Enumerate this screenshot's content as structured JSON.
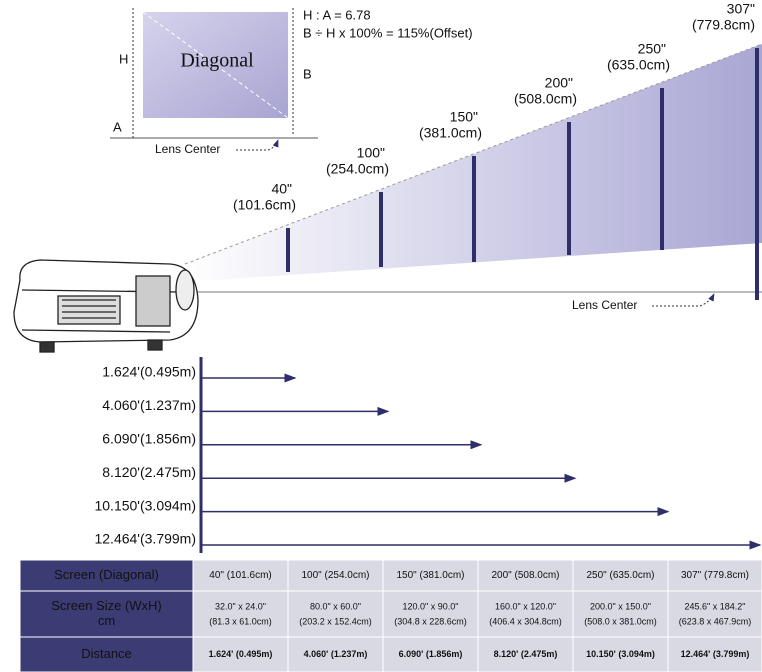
{
  "inset": {
    "formula_ratio": "H : A = 6.78",
    "formula_offset": "B ÷ H x 100% = 115%(Offset)",
    "label_h": "H",
    "label_a": "A",
    "label_b": "B",
    "diagonal": "Diagonal",
    "lens_center": "Lens Center"
  },
  "screens": [
    {
      "size": "40\"",
      "cm": "(101.6cm)"
    },
    {
      "size": "100\"",
      "cm": "(254.0cm)"
    },
    {
      "size": "150\"",
      "cm": "(381.0cm)"
    },
    {
      "size": "200\"",
      "cm": "(508.0cm)"
    },
    {
      "size": "250\"",
      "cm": "(635.0cm)"
    },
    {
      "size": "307\"",
      "cm": "(779.8cm)"
    }
  ],
  "lens_center": "Lens Center",
  "distances": [
    "1.624'(0.495m)",
    "4.060'(1.237m)",
    "6.090'(1.856m)",
    "8.120'(2.475m)",
    "10.150'(3.094m)",
    "12.464'(3.799m)"
  ],
  "table": {
    "rows": [
      {
        "label": "Screen (Diagonal)",
        "cells": [
          [
            "40\" (101.6cm)"
          ],
          [
            "100\" (254.0cm)"
          ],
          [
            "150\" (381.0cm)"
          ],
          [
            "200\" (508.0cm)"
          ],
          [
            "250\" (635.0cm)"
          ],
          [
            "307\" (779.8cm)"
          ]
        ]
      },
      {
        "label": "Screen Size (WxH) cm",
        "cells": [
          [
            "32.0\" x 24.0\"",
            "(81.3 x 61.0cm)"
          ],
          [
            "80.0\" x 60.0\"",
            "(203.2 x 152.4cm)"
          ],
          [
            "120.0\" x 90.0\"",
            "(304.8 x 228.6cm)"
          ],
          [
            "160.0\" x 120.0\"",
            "(406.4 x 304.8cm)"
          ],
          [
            "200.0\" x 150.0\"",
            "(508.0 x 381.0cm)"
          ],
          [
            "245.6\" x 184.2\"",
            "(623.8 x 467.9cm)"
          ]
        ]
      },
      {
        "label": "Distance",
        "cells": [
          [
            "1.624' (0.495m)"
          ],
          [
            "4.060' (1.237m)"
          ],
          [
            "6.090' (1.856m)"
          ],
          [
            "8.120' (2.475m)"
          ],
          [
            "10.150' (3.094m)"
          ],
          [
            "12.464' (3.799m)"
          ]
        ]
      }
    ]
  }
}
